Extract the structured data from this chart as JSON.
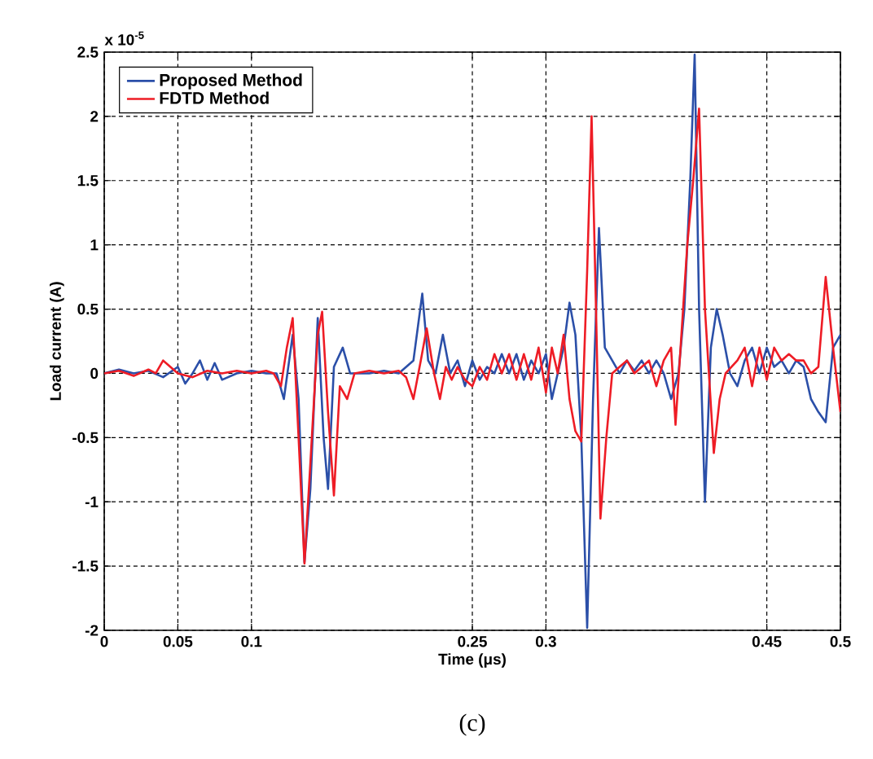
{
  "chart_data": {
    "type": "line",
    "xlabel": "Time (μs)",
    "ylabel": "Load current (A)",
    "annotations": [
      "x 10$^{-5}$",
      "(c)"
    ],
    "xlim": [
      0,
      0.5
    ],
    "ylim": [
      -2,
      2.5
    ],
    "xticks": [
      0,
      0.05,
      0.1,
      0.25,
      0.3,
      0.45,
      0.5
    ],
    "yticks": [
      -2,
      -1.5,
      -1,
      -0.5,
      0,
      0.5,
      1,
      1.5,
      2,
      2.5
    ],
    "grid": true,
    "legend": "top left",
    "marker": "none",
    "line_style": "solid",
    "series": [
      {
        "name": "Proposed Method",
        "color": "#2b4fa8",
        "x": [
          0,
          0.01,
          0.02,
          0.03,
          0.04,
          0.05,
          0.055,
          0.06,
          0.065,
          0.07,
          0.075,
          0.08,
          0.09,
          0.1,
          0.11,
          0.117,
          0.122,
          0.128,
          0.132,
          0.136,
          0.14,
          0.145,
          0.149,
          0.152,
          0.156,
          0.162,
          0.167,
          0.18,
          0.19,
          0.2,
          0.205,
          0.21,
          0.216,
          0.22,
          0.225,
          0.23,
          0.235,
          0.24,
          0.245,
          0.25,
          0.255,
          0.26,
          0.265,
          0.27,
          0.275,
          0.28,
          0.285,
          0.29,
          0.295,
          0.3,
          0.304,
          0.308,
          0.312,
          0.316,
          0.32,
          0.324,
          0.328,
          0.332,
          0.336,
          0.34,
          0.345,
          0.35,
          0.355,
          0.36,
          0.365,
          0.37,
          0.375,
          0.38,
          0.385,
          0.39,
          0.394,
          0.398,
          0.401,
          0.404,
          0.408,
          0.412,
          0.416,
          0.42,
          0.425,
          0.43,
          0.435,
          0.44,
          0.445,
          0.45,
          0.455,
          0.46,
          0.465,
          0.47,
          0.475,
          0.48,
          0.485,
          0.49,
          0.495,
          0.5
        ],
        "values": [
          0,
          0.03,
          0,
          0.02,
          -0.03,
          0.05,
          -0.08,
          0,
          0.1,
          -0.05,
          0.08,
          -0.05,
          0,
          0.02,
          0,
          0,
          -0.2,
          0.3,
          -0.2,
          -1.47,
          -0.9,
          0.43,
          -0.5,
          -0.9,
          0.05,
          0.2,
          0,
          0,
          0.02,
          0,
          0.05,
          0.1,
          0.62,
          0.1,
          0,
          0.3,
          0,
          0.1,
          -0.1,
          0.1,
          -0.05,
          0.05,
          0,
          0.15,
          0,
          0.15,
          -0.05,
          0.1,
          0,
          0.15,
          -0.2,
          0,
          0.2,
          0.55,
          0.3,
          -0.5,
          -1.98,
          -0.2,
          1.13,
          0.2,
          0.1,
          0,
          0.1,
          0.02,
          0.1,
          0,
          0.1,
          0,
          -0.2,
          0,
          0.5,
          1.5,
          2.48,
          0.5,
          -1.0,
          0.2,
          0.5,
          0.3,
          0,
          -0.1,
          0.1,
          0.2,
          0,
          0.2,
          0.05,
          0.1,
          0,
          0.1,
          0.05,
          -0.2,
          -0.3,
          -0.38,
          0.2,
          0.3
        ]
      },
      {
        "name": "FDTD Method",
        "color": "#ee1c25",
        "x": [
          0,
          0.01,
          0.02,
          0.03,
          0.035,
          0.04,
          0.045,
          0.05,
          0.06,
          0.07,
          0.08,
          0.09,
          0.1,
          0.11,
          0.115,
          0.12,
          0.124,
          0.128,
          0.132,
          0.136,
          0.14,
          0.145,
          0.148,
          0.152,
          0.156,
          0.16,
          0.165,
          0.17,
          0.18,
          0.19,
          0.2,
          0.205,
          0.21,
          0.215,
          0.219,
          0.224,
          0.228,
          0.232,
          0.236,
          0.24,
          0.245,
          0.25,
          0.255,
          0.26,
          0.265,
          0.27,
          0.275,
          0.28,
          0.285,
          0.29,
          0.295,
          0.3,
          0.304,
          0.308,
          0.312,
          0.316,
          0.32,
          0.324,
          0.328,
          0.331,
          0.334,
          0.337,
          0.341,
          0.345,
          0.35,
          0.355,
          0.36,
          0.365,
          0.37,
          0.375,
          0.38,
          0.385,
          0.388,
          0.392,
          0.396,
          0.4,
          0.404,
          0.408,
          0.414,
          0.418,
          0.422,
          0.43,
          0.435,
          0.44,
          0.445,
          0.45,
          0.455,
          0.46,
          0.465,
          0.47,
          0.475,
          0.48,
          0.485,
          0.49,
          0.495,
          0.5
        ],
        "values": [
          0,
          0.02,
          -0.02,
          0.03,
          0,
          0.1,
          0.05,
          0,
          -0.03,
          0.02,
          0,
          0.02,
          0,
          0.02,
          0,
          -0.1,
          0.2,
          0.43,
          -0.5,
          -1.48,
          -0.7,
          0.3,
          0.48,
          -0.3,
          -0.95,
          -0.1,
          -0.2,
          0,
          0.02,
          0,
          0.02,
          -0.03,
          -0.2,
          0.1,
          0.35,
          0,
          -0.2,
          0.05,
          -0.05,
          0.05,
          -0.05,
          -0.1,
          0.05,
          -0.05,
          0.15,
          0,
          0.15,
          -0.05,
          0.15,
          -0.05,
          0.2,
          -0.15,
          0.2,
          0,
          0.3,
          -0.2,
          -0.45,
          -0.53,
          0.8,
          2.0,
          0.5,
          -1.13,
          -0.5,
          0,
          0.05,
          0.1,
          0,
          0.05,
          0.1,
          -0.1,
          0.1,
          0.2,
          -0.4,
          0.3,
          1.0,
          1.5,
          2.06,
          0.5,
          -0.62,
          -0.2,
          0,
          0.1,
          0.2,
          -0.1,
          0.2,
          -0.05,
          0.2,
          0.1,
          0.15,
          0.1,
          0.1,
          0,
          0.05,
          0.75,
          0.2,
          -0.3
        ]
      }
    ]
  }
}
